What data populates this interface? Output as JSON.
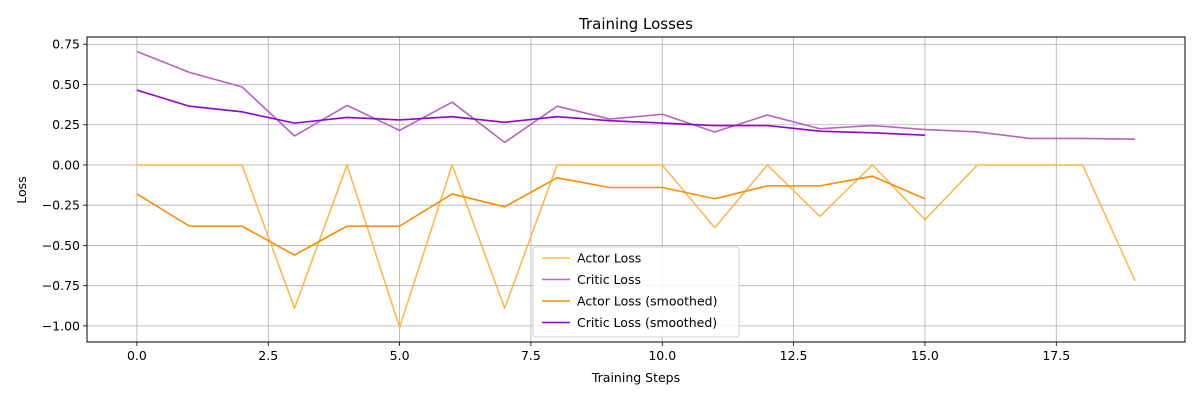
{
  "chart_data": {
    "type": "line",
    "title": "Training Losses",
    "xlabel": "Training Steps",
    "ylabel": "Loss",
    "xlim": [
      -0.95,
      19.95
    ],
    "ylim": [
      -1.1,
      0.795
    ],
    "xticks": [
      0.0,
      2.5,
      5.0,
      7.5,
      10.0,
      12.5,
      15.0,
      17.5
    ],
    "xtick_labels": [
      "0.0",
      "2.5",
      "5.0",
      "7.5",
      "10.0",
      "12.5",
      "15.0",
      "17.5"
    ],
    "yticks": [
      -1.0,
      -0.75,
      -0.5,
      -0.25,
      0.0,
      0.25,
      0.5,
      0.75
    ],
    "ytick_labels": [
      "−1.00",
      "−0.75",
      "−0.50",
      "−0.25",
      "0.00",
      "0.25",
      "0.50",
      "0.75"
    ],
    "grid": true,
    "legend_position": "lower-center",
    "series": [
      {
        "name": "Actor Loss",
        "color": "#fdb94d",
        "x": [
          0,
          1,
          2,
          3,
          4,
          5,
          6,
          7,
          8,
          9,
          10,
          11,
          12,
          13,
          14,
          15,
          16,
          17,
          18,
          19
        ],
        "values": [
          0.0,
          0.0,
          0.0,
          -0.89,
          0.0,
          -1.01,
          0.0,
          -0.89,
          0.0,
          0.0,
          0.0,
          -0.39,
          0.0,
          -0.32,
          0.0,
          -0.34,
          0.0,
          0.0,
          0.0,
          -0.72
        ]
      },
      {
        "name": "Critic Loss",
        "color": "#b565c0",
        "x": [
          0,
          1,
          2,
          3,
          4,
          5,
          6,
          7,
          8,
          9,
          10,
          11,
          12,
          13,
          14,
          15,
          16,
          17,
          18,
          19
        ],
        "values": [
          0.705,
          0.575,
          0.485,
          0.18,
          0.37,
          0.215,
          0.39,
          0.14,
          0.365,
          0.285,
          0.315,
          0.205,
          0.31,
          0.225,
          0.245,
          0.22,
          0.205,
          0.165,
          0.165,
          0.16
        ]
      },
      {
        "name": "Actor Loss (smoothed)",
        "color": "#ff8c00",
        "x": [
          0,
          1,
          2,
          3,
          4,
          5,
          6,
          7,
          8,
          9,
          10,
          11,
          12,
          13,
          14,
          15
        ],
        "values": [
          -0.18,
          -0.38,
          -0.38,
          -0.56,
          -0.38,
          -0.38,
          -0.18,
          -0.26,
          -0.08,
          -0.14,
          -0.14,
          -0.21,
          -0.13,
          -0.13,
          -0.07,
          -0.21
        ]
      },
      {
        "name": "Critic Loss (smoothed)",
        "color": "#9400d3",
        "x": [
          0,
          1,
          2,
          3,
          4,
          5,
          6,
          7,
          8,
          9,
          10,
          11,
          12,
          13,
          14,
          15
        ],
        "values": [
          0.465,
          0.365,
          0.33,
          0.26,
          0.295,
          0.28,
          0.3,
          0.265,
          0.3,
          0.275,
          0.26,
          0.245,
          0.245,
          0.21,
          0.2,
          0.185
        ]
      }
    ]
  }
}
